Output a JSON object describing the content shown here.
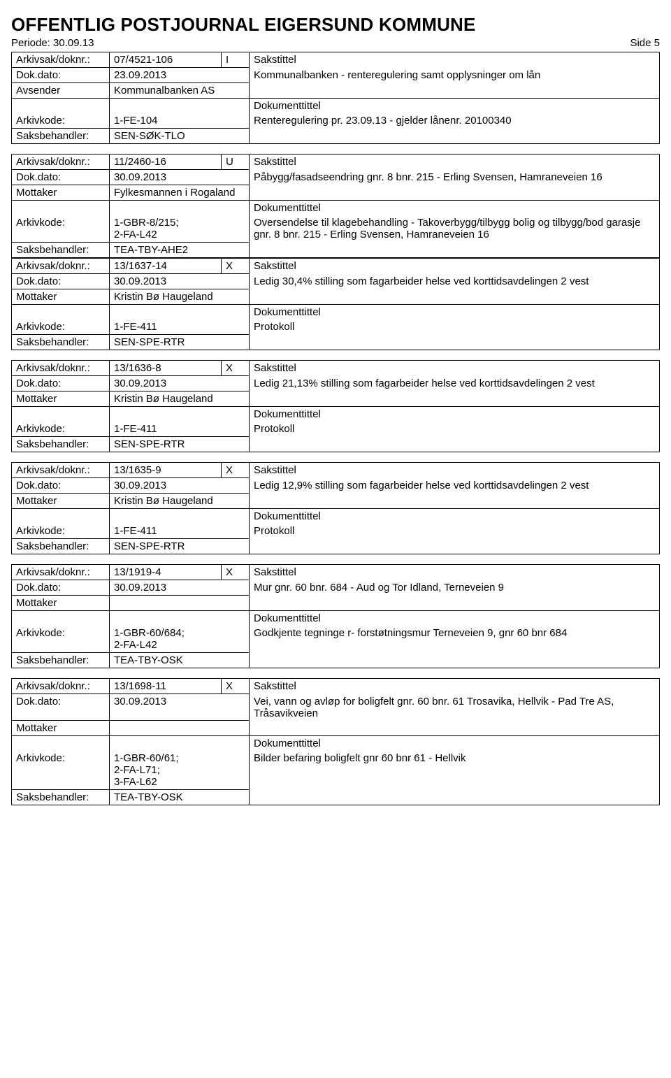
{
  "header": {
    "title": "OFFENTLIG POSTJOURNAL EIGERSUND KOMMUNE",
    "periode_label": "Periode:",
    "periode_value": "30.09.13",
    "side_label": "Side",
    "side_value": "5"
  },
  "labels": {
    "arkivsak": "Arkivsak/doknr.:",
    "dokdato": "Dok.dato:",
    "avsender": "Avsender",
    "mottaker": "Mottaker",
    "arkivkode": "Arkivkode:",
    "saksbehandler": "Saksbehandler:",
    "sakstittel": "Sakstittel",
    "dokumenttittel": "Dokumenttittel"
  },
  "records": [
    {
      "arkivsak": "07/4521-106",
      "io": "I",
      "dokdato": "23.09.2013",
      "party_label": "Avsender",
      "party": "Kommunalbanken AS",
      "sakstittel": "Kommunalbanken - renteregulering samt opplysninger om lån",
      "arkivkode": "1-FE-104",
      "saksbehandler": "SEN-SØK-TLO",
      "dokumenttittel": "Renteregulering pr. 23.09.13 - gjelder lånenr. 20100340"
    },
    {
      "arkivsak": "11/2460-16",
      "io": "U",
      "dokdato": "30.09.2013",
      "party_label": "Mottaker",
      "party": "Fylkesmannen i Rogaland",
      "sakstittel": "Påbygg/fasadseendring gnr. 8 bnr. 215 - Erling Svensen, Hamraneveien 16",
      "arkivkode": "1-GBR-8/215;\n2-FA-L42",
      "saksbehandler": "TEA-TBY-AHE2",
      "dokumenttittel": "Oversendelse til klagebehandling - Takoverbygg/tilbygg bolig og tilbygg/bod garasje gnr. 8 bnr. 215 - Erling Svensen, Hamraneveien 16",
      "merge_next": true
    },
    {
      "arkivsak": "13/1637-14",
      "io": "X",
      "dokdato": "30.09.2013",
      "party_label": "Mottaker",
      "party": "Kristin Bø Haugeland",
      "sakstittel": "Ledig 30,4% stilling som fagarbeider helse ved korttidsavdelingen 2 vest",
      "arkivkode": "1-FE-411",
      "saksbehandler": "SEN-SPE-RTR",
      "dokumenttittel": "Protokoll"
    },
    {
      "arkivsak": "13/1636-8",
      "io": "X",
      "dokdato": "30.09.2013",
      "party_label": "Mottaker",
      "party": "Kristin Bø Haugeland",
      "sakstittel": "Ledig 21,13% stilling som fagarbeider helse ved  korttidsavdelingen 2 vest",
      "arkivkode": "1-FE-411",
      "saksbehandler": "SEN-SPE-RTR",
      "dokumenttittel": "Protokoll"
    },
    {
      "arkivsak": "13/1635-9",
      "io": "X",
      "dokdato": "30.09.2013",
      "party_label": "Mottaker",
      "party": "Kristin Bø Haugeland",
      "sakstittel": "Ledig 12,9% stilling som fagarbeider helse ved korttidsavdelingen 2 vest",
      "arkivkode": "1-FE-411",
      "saksbehandler": "SEN-SPE-RTR",
      "dokumenttittel": "Protokoll"
    },
    {
      "arkivsak": "13/1919-4",
      "io": "X",
      "dokdato": "30.09.2013",
      "party_label": "Mottaker",
      "party": "",
      "sakstittel": "Mur gnr. 60 bnr. 684 - Aud og Tor Idland, Terneveien 9",
      "arkivkode": "1-GBR-60/684;\n2-FA-L42",
      "saksbehandler": "TEA-TBY-OSK",
      "dokumenttittel": "Godkjente tegninge r- forstøtningsmur Terneveien 9, gnr 60 bnr 684"
    },
    {
      "arkivsak": "13/1698-11",
      "io": "X",
      "dokdato": "30.09.2013",
      "party_label": "Mottaker",
      "party": "",
      "sakstittel": "Vei, vann og avløp for boligfelt gnr. 60 bnr. 61 Trosavika, Hellvik - Pad Tre AS, Tråsavikveien",
      "arkivkode": "1-GBR-60/61;\n2-FA-L71;\n3-FA-L62",
      "saksbehandler": "TEA-TBY-OSK",
      "dokumenttittel": "Bilder befaring boligfelt gnr 60 bnr 61 - Hellvik"
    }
  ]
}
